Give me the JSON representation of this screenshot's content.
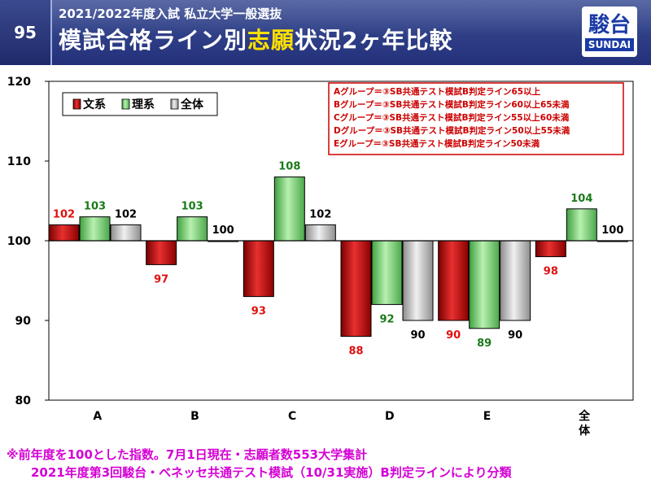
{
  "header": {
    "page_number": "95",
    "subtitle": "2021/2022年度入試 私立大学一般選抜",
    "title_before": "模試合格ライン別",
    "title_highlight": "志願",
    "title_after": "状況2ヶ年比較",
    "logo_main": "駿台",
    "logo_sub": "SUNDAI"
  },
  "colors": {
    "bunkei": "#c81414",
    "rikei": "#6ed26e",
    "zentai": "#bdbdbd",
    "label_bunkei": "#e01010",
    "label_rikei": "#1a7a1a",
    "label_zentai": "#000000",
    "note_text": "#cc0000",
    "footnote": "#d400d4",
    "header_bg": "#2f3f86"
  },
  "chart_data": {
    "type": "bar",
    "baseline": 100,
    "ylim": [
      80,
      120
    ],
    "yticks": [
      80,
      90,
      100,
      110,
      120
    ],
    "categories": [
      "A",
      "B",
      "C",
      "D",
      "E",
      "全体"
    ],
    "series": [
      {
        "name": "文系",
        "values": [
          102,
          97,
          93,
          88,
          90,
          98
        ]
      },
      {
        "name": "理系",
        "values": [
          103,
          103,
          108,
          92,
          89,
          104
        ]
      },
      {
        "name": "全体",
        "values": [
          102,
          100,
          102,
          90,
          90,
          100
        ]
      }
    ],
    "legend_position": "top-left",
    "notes": [
      "Aグループ＝③SB共通テスト模試B判定ライン65以上",
      "Bグループ＝③SB共通テスト模試B判定ライン60以上65未満",
      "Cグループ＝③SB共通テスト模試B判定ライン55以上60未満",
      "Dグループ＝③SB共通テスト模試B判定ライン50以上55未満",
      "Eグループ＝③SB共通テスト模試B判定ライン50未満"
    ]
  },
  "footnote": {
    "line1": "※前年度を100とした指数。7月1日現在・志願者数553大学集計",
    "line2": "2021年度第3回駿台・ベネッセ共通テスト模試（10/31実施）B判定ラインにより分類"
  }
}
